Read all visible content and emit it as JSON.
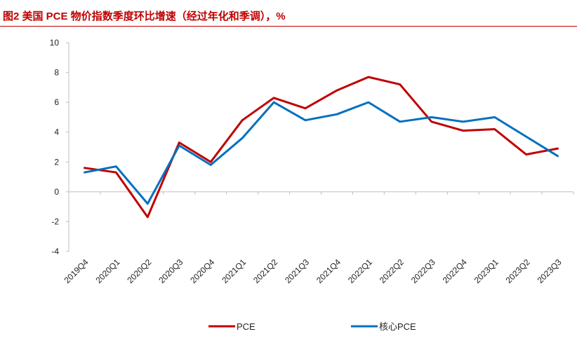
{
  "title": "图2  美国 PCE 物价指数季度环比增速（经过年化和季调），%",
  "colors": {
    "title": "#c00000",
    "pce": "#c00000",
    "core_pce": "#0070c0",
    "axis": "#bfbfbf"
  },
  "chart_data": {
    "type": "line",
    "title": "图2  美国 PCE 物价指数季度环比增速（经过年化和季调），%",
    "xlabel": "",
    "ylabel": "",
    "ylim": [
      -4,
      10
    ],
    "yticks": [
      -4,
      -2,
      0,
      2,
      4,
      6,
      8,
      10
    ],
    "grid": false,
    "legend": "bottom",
    "categories": [
      "2019Q4",
      "2020Q1",
      "2020Q2",
      "2020Q3",
      "2020Q4",
      "2021Q1",
      "2021Q2",
      "2021Q3",
      "2021Q4",
      "2022Q1",
      "2022Q2",
      "2022Q3",
      "2022Q4",
      "2023Q1",
      "2023Q2",
      "2023Q3"
    ],
    "series": [
      {
        "name": "PCE",
        "color": "#c00000",
        "values": [
          1.6,
          1.3,
          -1.7,
          3.3,
          2.0,
          4.8,
          6.3,
          5.6,
          6.8,
          7.7,
          7.2,
          4.7,
          4.1,
          4.2,
          2.5,
          2.9
        ]
      },
      {
        "name": "核心PCE",
        "color": "#0070c0",
        "values": [
          1.3,
          1.7,
          -0.8,
          3.1,
          1.8,
          3.6,
          6.0,
          4.8,
          5.2,
          6.0,
          4.7,
          5.0,
          4.7,
          5.0,
          3.7,
          2.4
        ]
      }
    ]
  }
}
